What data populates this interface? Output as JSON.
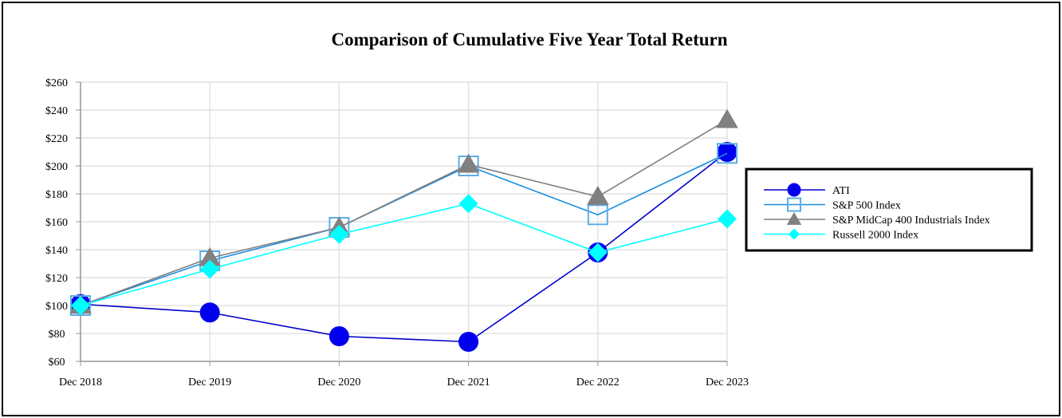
{
  "chart_data": {
    "type": "line",
    "title": "Comparison of Cumulative Five Year Total Return",
    "categories": [
      "Dec 2018",
      "Dec 2019",
      "Dec 2020",
      "Dec 2021",
      "Dec 2022",
      "Dec 2023"
    ],
    "ylim": [
      60,
      260
    ],
    "yticks": [
      60,
      80,
      100,
      120,
      140,
      160,
      180,
      200,
      220,
      240,
      260
    ],
    "ytick_prefix": "$",
    "grid": true,
    "legend_position": "right",
    "series": [
      {
        "name": "ATI",
        "marker": "circle",
        "color": "#0000ee",
        "values": [
          101,
          95,
          78,
          74,
          138,
          210
        ]
      },
      {
        "name": "S&P 500 Index",
        "marker": "square",
        "color": "#1b8fe0",
        "values": [
          100,
          132,
          156,
          200,
          165,
          209
        ]
      },
      {
        "name": "S&P MidCap 400 Industrials Index",
        "marker": "triangle",
        "color": "#808080",
        "values": [
          100,
          134,
          156,
          201,
          178,
          233
        ]
      },
      {
        "name": "Russell 2000 Index",
        "marker": "diamond",
        "color": "#00ffff",
        "values": [
          100,
          126,
          151,
          173,
          138,
          162
        ]
      }
    ]
  }
}
